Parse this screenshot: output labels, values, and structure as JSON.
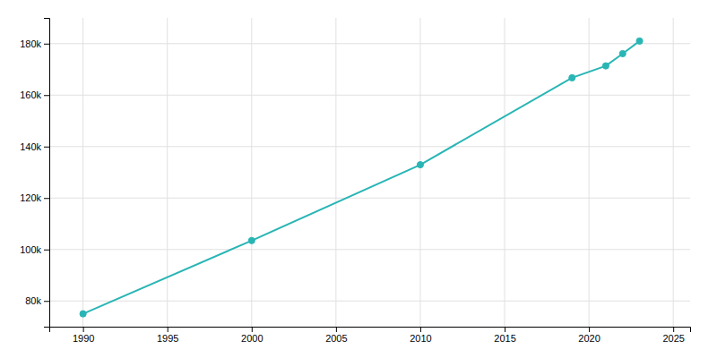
{
  "chart_data": {
    "type": "line",
    "x": [
      1990,
      2000,
      2010,
      2019,
      2021,
      2022,
      2023
    ],
    "values": [
      75000,
      103455,
      132929,
      166722,
      171350,
      176105,
      181000
    ],
    "color": "#2ab5b5",
    "marker": "circle",
    "xlim": [
      1988,
      2026
    ],
    "ylim": [
      70000,
      190000
    ],
    "xticks": [
      1990,
      1995,
      2000,
      2005,
      2010,
      2015,
      2020,
      2025
    ],
    "yticks": [
      {
        "value": 80000,
        "label": "80k"
      },
      {
        "value": 100000,
        "label": "100k"
      },
      {
        "value": 120000,
        "label": "120k"
      },
      {
        "value": 140000,
        "label": "140k"
      },
      {
        "value": 160000,
        "label": "160k"
      },
      {
        "value": 180000,
        "label": "180k"
      }
    ],
    "grid": true
  }
}
